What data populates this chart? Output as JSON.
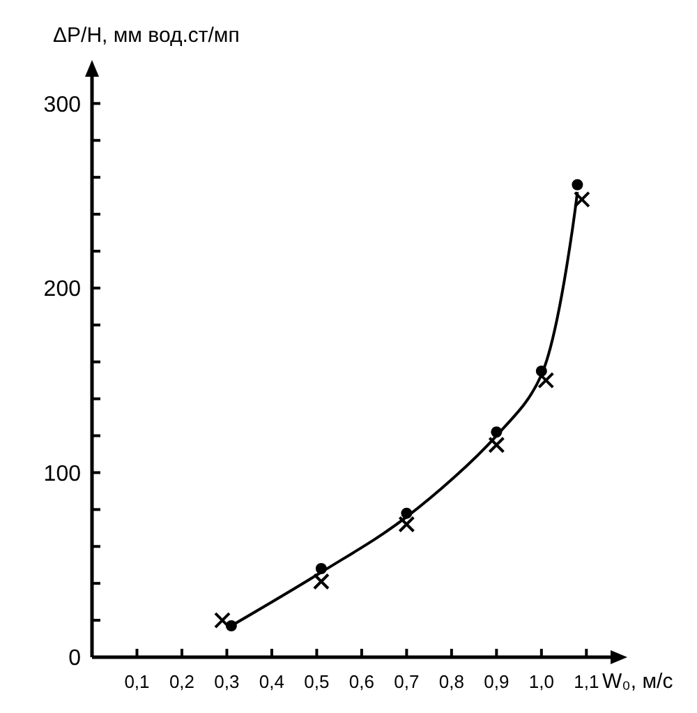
{
  "chart_data": {
    "type": "scatter",
    "xlabel": "W₀, м/с",
    "ylabel": "ΔP/H, мм вод.ст/мп",
    "xlim": [
      0,
      1.16
    ],
    "ylim": [
      0,
      316
    ],
    "xticks": [
      {
        "value": 0.1,
        "label": "0,1"
      },
      {
        "value": 0.2,
        "label": "0,2"
      },
      {
        "value": 0.3,
        "label": "0,3"
      },
      {
        "value": 0.4,
        "label": "0,4"
      },
      {
        "value": 0.5,
        "label": "0,5"
      },
      {
        "value": 0.6,
        "label": "0,6"
      },
      {
        "value": 0.7,
        "label": "0,7"
      },
      {
        "value": 0.8,
        "label": "0,8"
      },
      {
        "value": 0.9,
        "label": "0,9"
      },
      {
        "value": 1.0,
        "label": "1,0"
      },
      {
        "value": 1.1,
        "label": "1,1"
      }
    ],
    "yticks": [
      0,
      {
        "value": 20,
        "label": null
      },
      {
        "value": 40,
        "label": null
      },
      {
        "value": 60,
        "label": null
      },
      {
        "value": 80,
        "label": null
      },
      100,
      {
        "value": 120,
        "label": null
      },
      {
        "value": 140,
        "label": null
      },
      {
        "value": 160,
        "label": null
      },
      {
        "value": 180,
        "label": null
      },
      200,
      {
        "value": 220,
        "label": null
      },
      {
        "value": 240,
        "label": null
      },
      {
        "value": 260,
        "label": null
      },
      {
        "value": 280,
        "label": null
      },
      300
    ],
    "grid": false,
    "series": [
      {
        "type": "line",
        "color": "#000000",
        "marker": "none",
        "line_style": "solid",
        "x": [
          0.31,
          0.51,
          0.7,
          0.9,
          1.0,
          1.08
        ],
        "values": [
          17,
          46,
          76,
          120,
          153,
          252
        ]
      },
      {
        "color": "#000000",
        "marker": "circle",
        "x": [
          0.31,
          0.51,
          0.7,
          0.9,
          1.0,
          1.08
        ],
        "values": [
          17,
          48,
          78,
          122,
          155,
          256
        ]
      },
      {
        "color": "#000000",
        "marker": "cross",
        "x": [
          0.29,
          0.51,
          0.7,
          0.9,
          1.01,
          1.09
        ],
        "values": [
          20,
          41,
          72,
          115,
          150,
          248
        ]
      }
    ]
  }
}
